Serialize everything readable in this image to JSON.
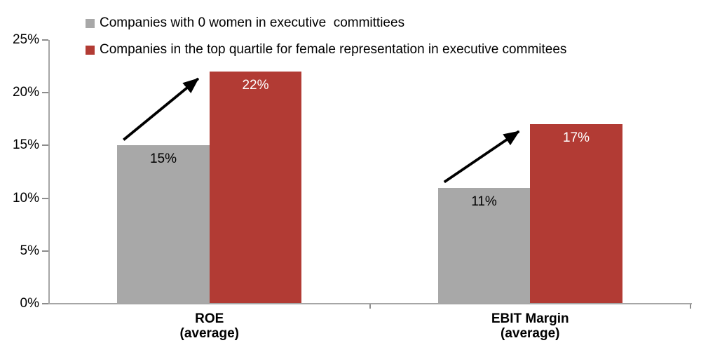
{
  "chart_data": {
    "type": "bar",
    "categories": [
      "ROE\n(average)",
      "EBIT Margin\n(average)"
    ],
    "series": [
      {
        "name": "Companies with 0 women in executive  committiees",
        "color": "#A8A8A8",
        "values": [
          15,
          11
        ],
        "data_labels": [
          "15%",
          "11%"
        ],
        "data_label_color": "#000000"
      },
      {
        "name": "Companies in the top quartile for female representation in executive commitees",
        "color": "#B23B34",
        "values": [
          22,
          17
        ],
        "data_labels": [
          "22%",
          "17%"
        ],
        "data_label_color": "#FFFFFF"
      }
    ],
    "ylim": [
      0,
      25
    ],
    "yticks_topdown": [
      "25%",
      "20%",
      "15%",
      "10%",
      "5%",
      "0%"
    ],
    "grid": false,
    "legend_position": "top-left",
    "axis_color": "#A6A6A6",
    "tick_color": "#8C8C8C",
    "text_color": "#000000",
    "annotations": [
      {
        "type": "increase-arrow",
        "category_index": 0,
        "color": "#000000"
      },
      {
        "type": "increase-arrow",
        "category_index": 1,
        "color": "#000000"
      }
    ]
  }
}
